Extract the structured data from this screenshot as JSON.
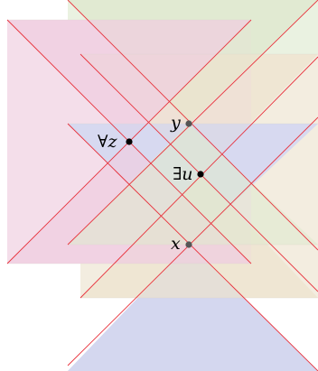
{
  "labels": {
    "forall_z": "∀z",
    "exists_u": "∃u",
    "y": "y",
    "x": "x"
  },
  "colors": {
    "light_line": "#e8323c",
    "green_fill": "#e3eed8",
    "tan_fill": "#efe7d6",
    "pink_fill": "#f1d3e3",
    "blue_fill": "#d6d8ef",
    "point_black": "#000000",
    "point_gray": "#555555"
  }
}
